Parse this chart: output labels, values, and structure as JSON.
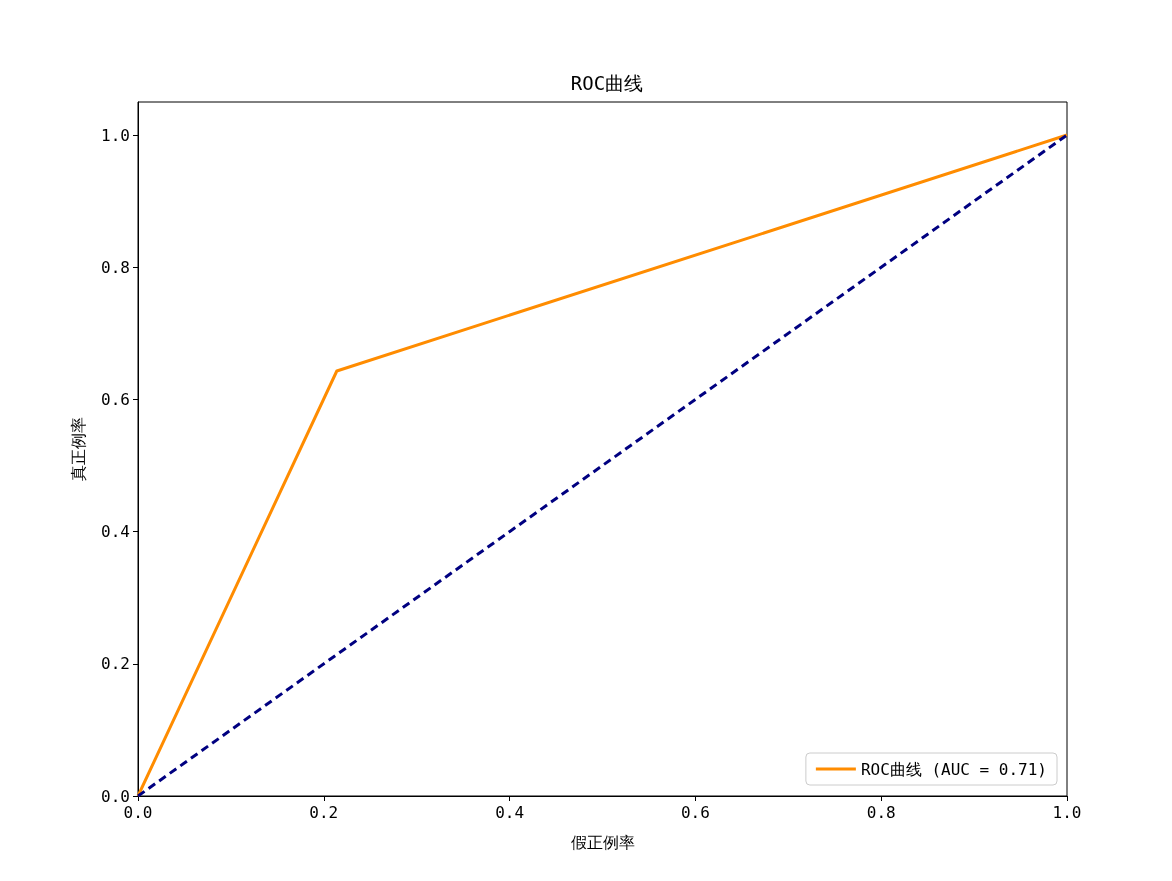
{
  "chart_data": {
    "type": "line",
    "title": "ROC曲线",
    "xlabel": "假正例率",
    "ylabel": "真正例率",
    "series": [
      {
        "name": "ROC曲线 (AUC = 0.71)",
        "color": "#ff8c00",
        "x": [
          0,
          0.214,
          1
        ],
        "values": [
          0,
          0.643,
          1
        ],
        "line_style": "solid"
      },
      {
        "color": "#000080",
        "x": [
          0,
          1
        ],
        "values": [
          0,
          1
        ],
        "line_style": "dashed"
      }
    ],
    "xlim": [
      0,
      1
    ],
    "ylim": [
      0,
      1.05
    ],
    "xticks": [
      {
        "value": 0,
        "label": "0.0"
      },
      0.2,
      0.4,
      0.6,
      0.8,
      {
        "value": 1,
        "label": "1.0"
      }
    ],
    "yticks": [
      {
        "value": 0,
        "label": "0.0"
      },
      0.2,
      0.4,
      0.6,
      0.8,
      {
        "value": 1,
        "label": "1.0"
      }
    ],
    "grid": false,
    "legend": "bottom right",
    "marker": "none"
  }
}
